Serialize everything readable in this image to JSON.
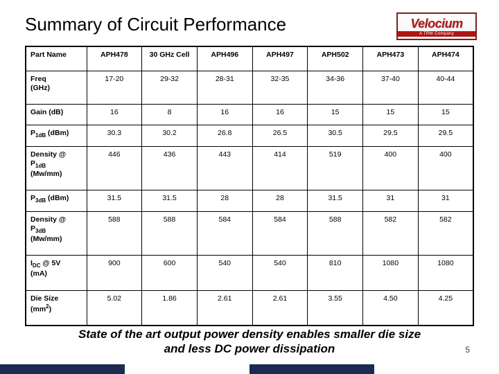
{
  "title": "Summary of Circuit Performance",
  "logo": {
    "brand": "Velocium",
    "sub": "A TRW Company"
  },
  "page_number": "5",
  "caption_line1": "State of the art output power density enables smaller die size",
  "caption_line2": "and less DC power dissipation",
  "table": {
    "header_first": "Part Name",
    "columns": [
      "APH478",
      "30 GHz Cell",
      "APH496",
      "APH497",
      "APH502",
      "APH473",
      "APH474"
    ],
    "rows": [
      {
        "label_html": "Freq<br>(GHz)",
        "cells": [
          "17-20",
          "29-32",
          "28-31",
          "32-35",
          "34-36",
          "37-40",
          "40-44"
        ]
      },
      {
        "label_html": "Gain (dB)",
        "cells": [
          "16",
          "8",
          "16",
          "16",
          "15",
          "15",
          "15"
        ],
        "short": true
      },
      {
        "label_html": "P<span class='sub1'>1dB</span> (dBm)",
        "cells": [
          "30.3",
          "30.2",
          "26.8",
          "26.5",
          "30.5",
          "29.5",
          "29.5"
        ],
        "short": true
      },
      {
        "label_html": "Density @<br>P<span class='sub1'>1dB</span><br>(Mw/mm)",
        "cells": [
          "446",
          "436",
          "443",
          "414",
          "519",
          "400",
          "400"
        ]
      },
      {
        "label_html": "P<span class='sub1'>3dB</span> (dBm)",
        "cells": [
          "31.5",
          "31.5",
          "28",
          "28",
          "31.5",
          "31",
          "31"
        ],
        "short": true
      },
      {
        "label_html": "Density @<br>P<span class='sub1'>3dB</span><br>(Mw/mm)",
        "cells": [
          "588",
          "588",
          "584",
          "584",
          "588",
          "582",
          "582"
        ]
      },
      {
        "label_html": "I<span class='sub1'>DC</span> @ 5V<br>(mA)",
        "cells": [
          "900",
          "600",
          "540",
          "540",
          "810",
          "1080",
          "1080"
        ]
      },
      {
        "label_html": "Die Size<br>(mm<span class='sup1'>2</span>)",
        "cells": [
          "5.02",
          "1.86",
          "2.61",
          "2.61",
          "3.55",
          "4.50",
          "4.25"
        ]
      }
    ]
  }
}
